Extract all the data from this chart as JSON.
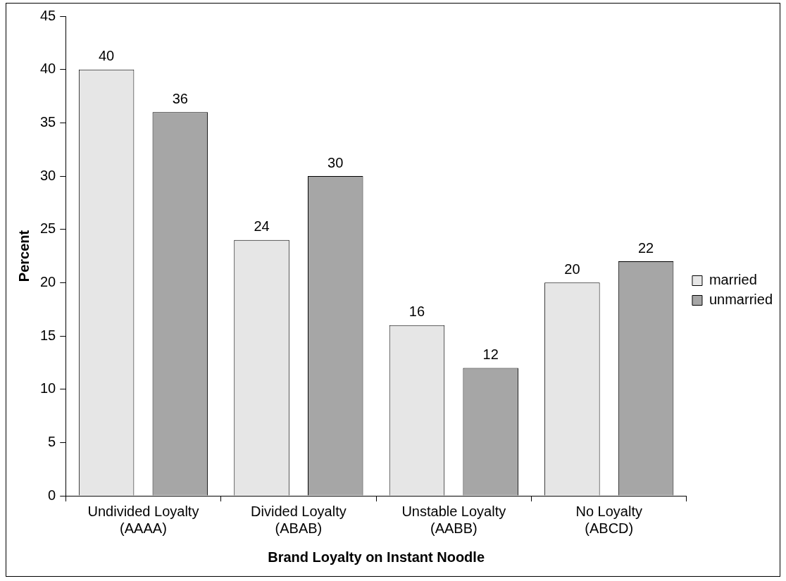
{
  "chart_data": {
    "type": "bar",
    "xlabel": "Brand Loyalty on Instant Noodle",
    "ylabel": "Percent",
    "categories": [
      "Undivided Loyalty (AAAA)",
      "Divided Loyalty (ABAB)",
      "Unstable Loyalty (AABB)",
      "No Loyalty (ABCD)"
    ],
    "series": [
      {
        "name": "married",
        "color": "#e6e6e6",
        "values": [
          40,
          24,
          16,
          20
        ]
      },
      {
        "name": "unmarried",
        "color": "#a6a6a6",
        "values": [
          36,
          30,
          12,
          22
        ]
      }
    ],
    "ylim": [
      0,
      45
    ],
    "yticks": [
      0,
      5,
      10,
      15,
      20,
      25,
      30,
      35,
      40,
      45
    ],
    "grid": false,
    "legend": "right",
    "data_labels": true
  }
}
